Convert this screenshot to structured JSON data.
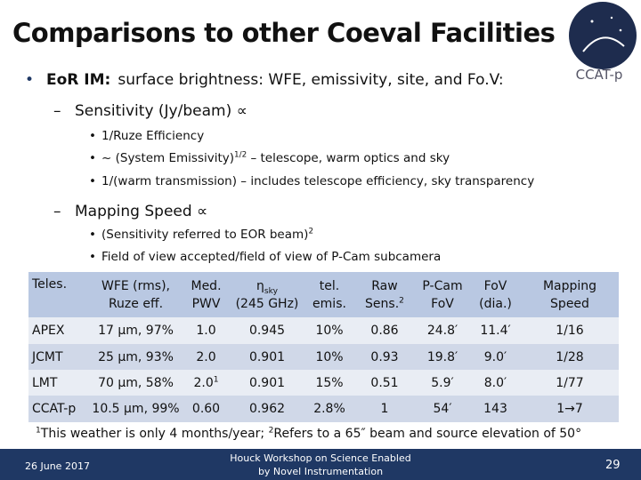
{
  "header": {
    "title": "Comparisons to other Coeval Facilities",
    "logo_text": "CCAT-p"
  },
  "bullets": [
    {
      "level": 1,
      "label": "EoR IM:",
      "parts": [
        {
          "text": "surface brightness: WFE, emissivity, site, and Fo.V:"
        }
      ]
    },
    {
      "level": 2,
      "parts": [
        {
          "text": "Sensitivity (Jy/beam) ∝"
        }
      ]
    },
    {
      "level": 3,
      "parts": [
        {
          "text": "1/Ruze Efficiency"
        }
      ]
    },
    {
      "level": 3,
      "parts": [
        {
          "text": "~ (System Emissivity)"
        },
        {
          "sup": "1/2"
        },
        {
          "text": " – telescope, warm optics and sky"
        }
      ]
    },
    {
      "level": 3,
      "parts": [
        {
          "text": "1/(warm transmission) – includes telescope efficiency, sky transparency"
        }
      ]
    },
    {
      "level": 2,
      "parts": [
        {
          "text": "Mapping Speed ∝"
        }
      ]
    },
    {
      "level": 3,
      "parts": [
        {
          "text": "(Sensitivity referred to EOR beam)"
        },
        {
          "sup": "2"
        }
      ]
    },
    {
      "level": 3,
      "parts": [
        {
          "text": "Field of view accepted/field of view of P-Cam subcamera"
        }
      ]
    }
  ],
  "table": {
    "header": [
      {
        "lines": [
          "Teles."
        ]
      },
      {
        "lines": [
          "WFE (rms),",
          "Ruze eff."
        ]
      },
      {
        "lines": [
          "Med.",
          "PWV"
        ]
      },
      {
        "lines": [
          "η",
          "(245 GHz)"
        ],
        "sub": "sky"
      },
      {
        "lines": [
          "tel.",
          "emis."
        ]
      },
      {
        "lines": [
          "Raw",
          "Sens."
        ],
        "sup": "2"
      },
      {
        "lines": [
          "P-Cam",
          "FoV"
        ]
      },
      {
        "lines": [
          "FoV",
          "(dia.)"
        ]
      },
      {
        "lines": [
          "Mapping",
          "Speed"
        ]
      }
    ],
    "rows": [
      [
        {
          "text": "APEX"
        },
        {
          "text": "17 μm, 97%"
        },
        {
          "text": "1.0"
        },
        {
          "text": "0.945"
        },
        {
          "text": "10%"
        },
        {
          "text": "0.86"
        },
        {
          "text": "24.8′"
        },
        {
          "text": "11.4′"
        },
        {
          "text": "1/16"
        }
      ],
      [
        {
          "text": "JCMT"
        },
        {
          "text": "25 μm, 93%"
        },
        {
          "text": "2.0"
        },
        {
          "text": "0.901"
        },
        {
          "text": "10%"
        },
        {
          "text": "0.93"
        },
        {
          "text": "19.8′"
        },
        {
          "text": "9.0′"
        },
        {
          "text": "1/28"
        }
      ],
      [
        {
          "text": "LMT"
        },
        {
          "text": "70 μm, 58%"
        },
        {
          "text": "2.0",
          "sup": "1"
        },
        {
          "text": "0.901"
        },
        {
          "text": "15%"
        },
        {
          "text": "0.51"
        },
        {
          "text": "5.9′"
        },
        {
          "text": "8.0′"
        },
        {
          "text": "1/77"
        }
      ],
      [
        {
          "text": "CCAT-p"
        },
        {
          "text": "10.5 μm, 99%"
        },
        {
          "text": "0.60"
        },
        {
          "text": "0.962"
        },
        {
          "text": "2.8%"
        },
        {
          "text": "1"
        },
        {
          "text": "54′"
        },
        {
          "text": "143"
        },
        {
          "text": "1→7"
        }
      ]
    ]
  },
  "footnote": [
    {
      "sup": "1",
      "text": "This weather is only 4 months/year; "
    },
    {
      "sup": "2",
      "text": "Refers to a 65″ beam and source elevation of 50°"
    }
  ],
  "footer": {
    "date": "26 June 2017",
    "event": [
      "Houck Workshop on Science Enabled",
      "by Novel Instrumentation"
    ],
    "page": "29"
  }
}
